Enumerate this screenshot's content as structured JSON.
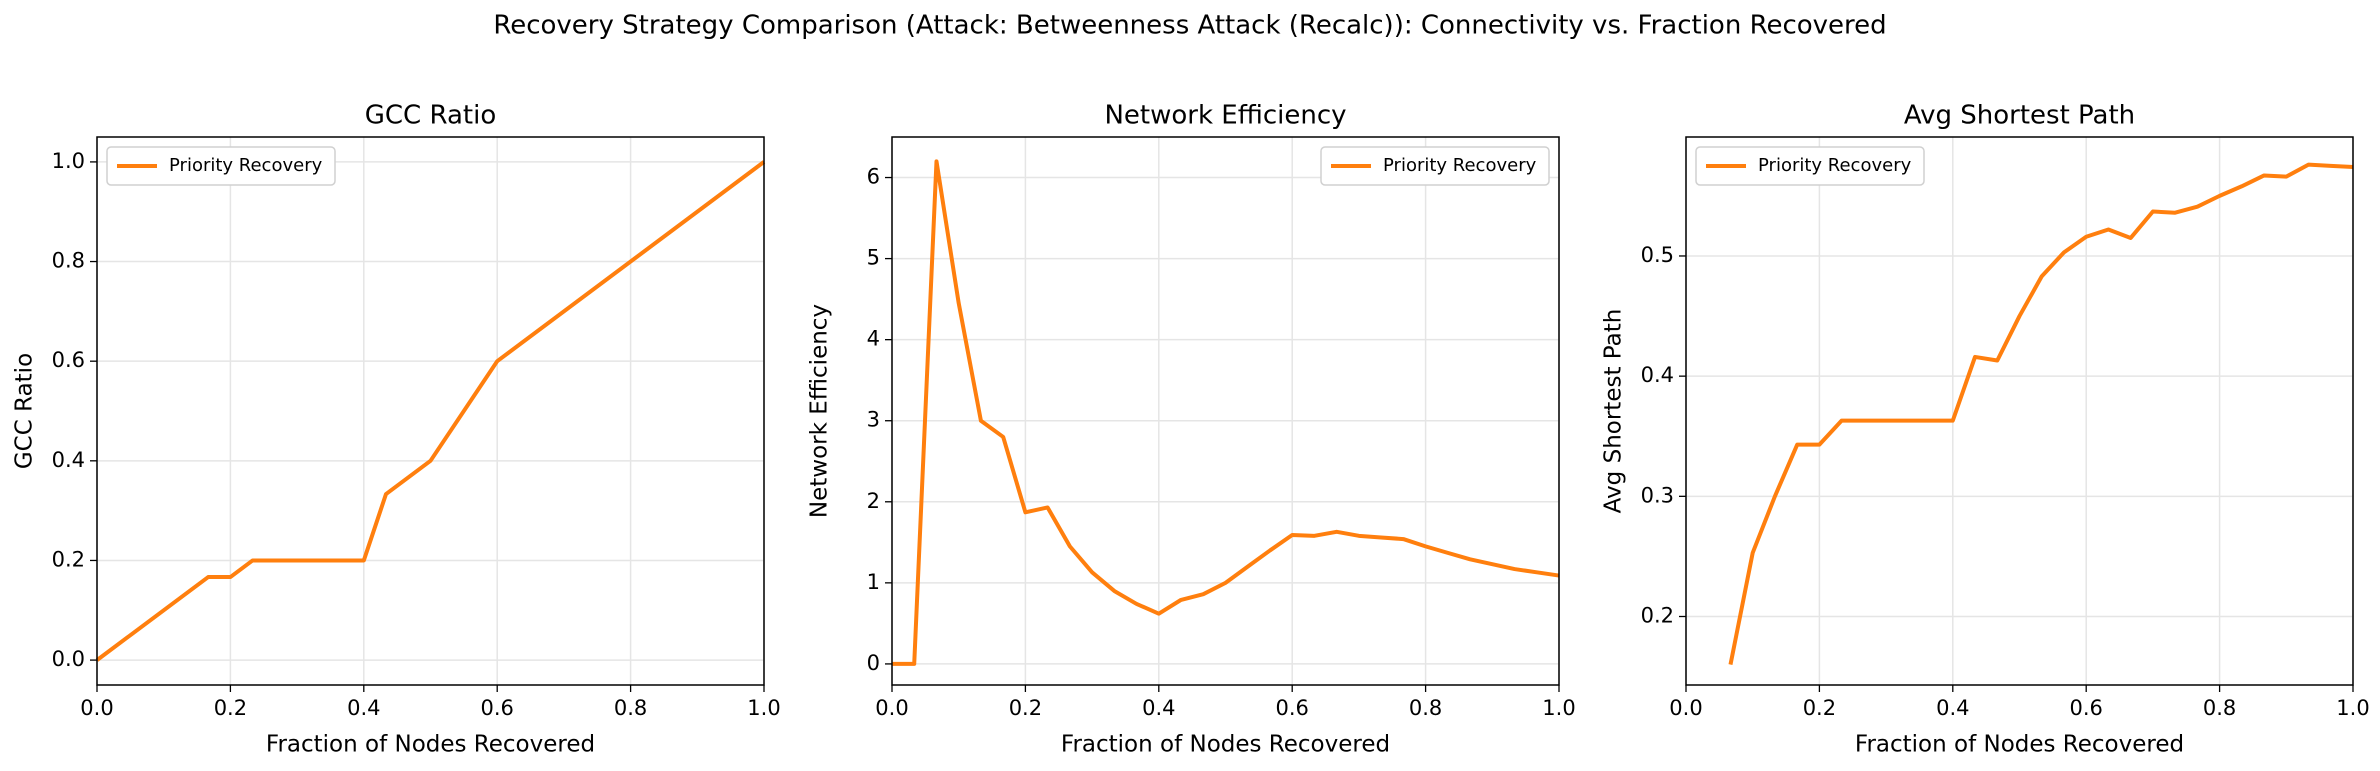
{
  "title": "Recovery Strategy Comparison (Attack: Betweenness Attack (Recalc)): Connectivity vs. Fraction Recovered",
  "chart_data": [
    {
      "type": "line",
      "title": "GCC Ratio",
      "xlabel": "Fraction of Nodes Recovered",
      "ylabel": "GCC Ratio",
      "x": [
        0,
        0.1667,
        0.2,
        0.2333,
        0.4,
        0.4333,
        0.5,
        0.6,
        1.0
      ],
      "series": [
        {
          "name": "Priority Recovery",
          "color": "#ff7f0e",
          "values": [
            0,
            0.1667,
            0.1667,
            0.2,
            0.2,
            0.3333,
            0.4,
            0.6,
            1.0
          ]
        }
      ],
      "xlim": [
        0,
        1
      ],
      "ylim": [
        -0.05,
        1.05
      ],
      "xticks": [
        {
          "value": 0,
          "label": "0.0"
        },
        0.2,
        0.4,
        0.6,
        0.8,
        {
          "value": 1,
          "label": "1.0"
        }
      ],
      "yticks": [
        {
          "value": 0,
          "label": "0.0"
        },
        0.2,
        0.4,
        0.6,
        0.8,
        {
          "value": 1,
          "label": "1.0"
        }
      ],
      "grid": true,
      "legend": "upper left"
    },
    {
      "type": "line",
      "title": "Network Efficiency",
      "xlabel": "Fraction of Nodes Recovered",
      "ylabel": "Network Efficiency",
      "x": [
        0,
        0.0333,
        0.0667,
        0.1,
        0.1333,
        0.1667,
        0.2,
        0.2333,
        0.2667,
        0.3,
        0.3333,
        0.3667,
        0.4,
        0.4333,
        0.4667,
        0.5,
        0.5333,
        0.5667,
        0.6,
        0.6333,
        0.6667,
        0.7,
        0.7333,
        0.7667,
        0.8,
        0.8333,
        0.8667,
        0.9,
        0.9333,
        0.9667,
        1.0
      ],
      "series": [
        {
          "name": "Priority Recovery",
          "color": "#ff7f0e",
          "values": [
            0,
            0,
            6.2,
            4.45,
            3.0,
            2.8,
            1.87,
            1.93,
            1.45,
            1.13,
            0.9,
            0.74,
            0.62,
            0.79,
            0.86,
            1.0,
            1.2,
            1.4,
            1.59,
            1.58,
            1.63,
            1.58,
            1.56,
            1.54,
            1.45,
            1.37,
            1.29,
            1.23,
            1.17,
            1.13,
            1.09
          ]
        }
      ],
      "xlim": [
        0,
        1
      ],
      "ylim": [
        -0.26,
        6.5
      ],
      "xticks": [
        {
          "value": 0,
          "label": "0.0"
        },
        0.2,
        0.4,
        0.6,
        0.8,
        {
          "value": 1,
          "label": "1.0"
        }
      ],
      "yticks": [
        0,
        1,
        2,
        3,
        4,
        5,
        6
      ],
      "grid": true,
      "legend": "upper right"
    },
    {
      "type": "line",
      "title": "Avg Shortest Path",
      "xlabel": "Fraction of Nodes Recovered",
      "ylabel": "Avg Shortest Path",
      "x": [
        0.0667,
        0.1,
        0.1333,
        0.1667,
        0.2,
        0.2333,
        0.4,
        0.4333,
        0.4667,
        0.5,
        0.5333,
        0.5667,
        0.6,
        0.6333,
        0.6667,
        0.7,
        0.7333,
        0.7667,
        0.8,
        0.8333,
        0.8667,
        0.9,
        0.9333,
        0.9667,
        1.0
      ],
      "series": [
        {
          "name": "Priority Recovery",
          "color": "#ff7f0e",
          "values": [
            0.16,
            0.253,
            0.3,
            0.343,
            0.343,
            0.363,
            0.363,
            0.416,
            0.413,
            0.45,
            0.483,
            0.503,
            0.516,
            0.522,
            0.515,
            0.537,
            0.536,
            0.541,
            0.55,
            0.558,
            0.567,
            0.566,
            0.576,
            0.575,
            0.574
          ]
        }
      ],
      "xlim": [
        0,
        1
      ],
      "ylim": [
        0.143,
        0.599
      ],
      "xticks": [
        {
          "value": 0,
          "label": "0.0"
        },
        0.2,
        0.4,
        0.6,
        0.8,
        {
          "value": 1,
          "label": "1.0"
        }
      ],
      "yticks": [
        0.2,
        0.3,
        0.4,
        0.5
      ],
      "grid": true,
      "legend": "upper left"
    }
  ]
}
